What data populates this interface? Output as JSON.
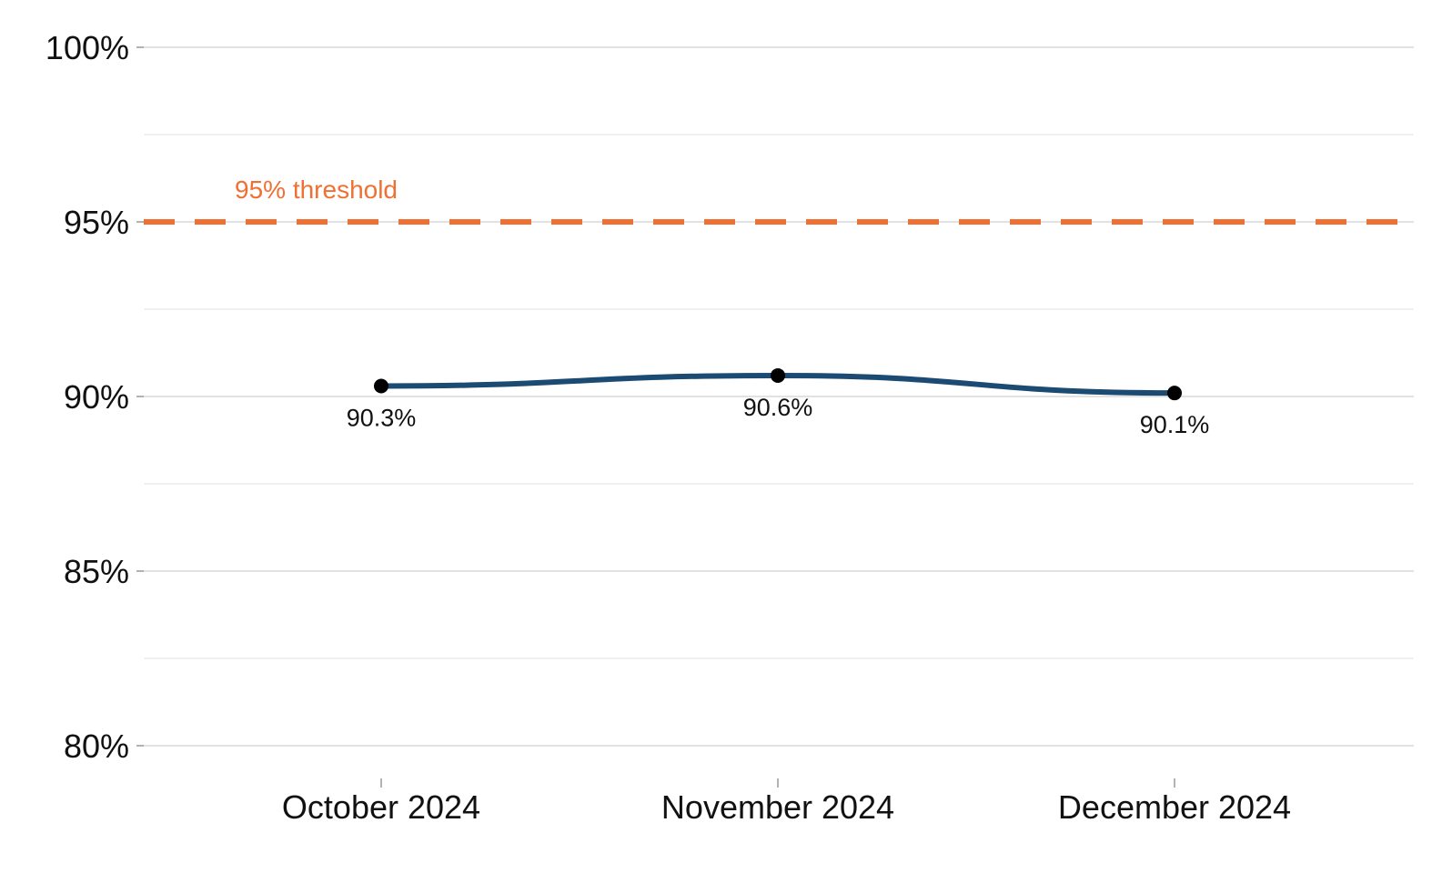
{
  "chart_data": {
    "type": "line",
    "title": "",
    "xlabel": "",
    "ylabel": "",
    "categories": [
      "October 2024",
      "November 2024",
      "December 2024"
    ],
    "series": [
      {
        "values": [
          90.3,
          90.6,
          90.1
        ],
        "labels": [
          "90.3%",
          "90.6%",
          "90.1%"
        ],
        "color": "#1b4a72",
        "marker_color": "#000000"
      }
    ],
    "ylim": [
      79,
      100.3
    ],
    "yticks": [
      80,
      85,
      90,
      95,
      100
    ],
    "ytick_labels": [
      "80%",
      "85%",
      "90%",
      "95%",
      "100%"
    ],
    "minor_gridlines": [
      82.5,
      87.5,
      92.5,
      97.5
    ],
    "grid": true,
    "legend": "none",
    "reference_line": {
      "value": 95,
      "label": "95% threshold",
      "style": "dashed",
      "color": "#f07033"
    }
  }
}
